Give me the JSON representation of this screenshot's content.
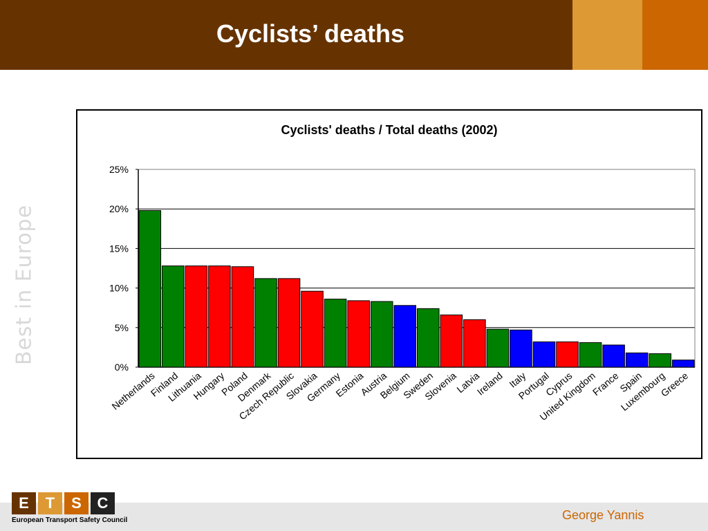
{
  "slide": {
    "title": "Cyclists’ deaths",
    "side_text": "Best in Europe",
    "author": "George Yannis"
  },
  "logo": {
    "letters": [
      "E",
      "T",
      "S",
      "C"
    ],
    "letter_colors": [
      "#663300",
      "#dd9933",
      "#cc6600",
      "#222222"
    ],
    "caption": "European Transport Safety Council"
  },
  "colors": {
    "header": "#663300",
    "accent_light": "#dd9933",
    "accent_dark": "#cc6600",
    "green": "#008000",
    "red": "#ff0000",
    "blue": "#0000ff"
  },
  "chart_data": {
    "type": "bar",
    "title": "Cyclists' deaths / Total deaths (2002)",
    "xlabel": "",
    "ylabel": "",
    "ylim": [
      0,
      25
    ],
    "yticks": [
      "0%",
      "5%",
      "10%",
      "15%",
      "20%",
      "25%"
    ],
    "grid": true,
    "categories": [
      "Netherlands",
      "Finland",
      "Lithuania",
      "Hungary",
      "Poland",
      "Denmark",
      "Czech Republic",
      "Slovakia",
      "Germany",
      "Estonia",
      "Austria",
      "Belgium",
      "Sweden",
      "Slovenia",
      "Latvia",
      "Ireland",
      "Italy",
      "Portugal",
      "Cyprus",
      "United Kingdom",
      "France",
      "Spain",
      "Luxembourg",
      "Greece"
    ],
    "values": [
      19.8,
      12.8,
      12.8,
      12.8,
      12.7,
      11.2,
      11.2,
      9.6,
      8.6,
      8.4,
      8.3,
      7.8,
      7.4,
      6.6,
      6.0,
      4.8,
      4.7,
      3.2,
      3.2,
      3.1,
      2.8,
      1.8,
      1.7,
      0.9
    ],
    "bar_colors": [
      "#008000",
      "#008000",
      "#ff0000",
      "#ff0000",
      "#ff0000",
      "#008000",
      "#ff0000",
      "#ff0000",
      "#008000",
      "#ff0000",
      "#008000",
      "#0000ff",
      "#008000",
      "#ff0000",
      "#ff0000",
      "#008000",
      "#0000ff",
      "#0000ff",
      "#ff0000",
      "#008000",
      "#0000ff",
      "#0000ff",
      "#008000",
      "#0000ff"
    ]
  }
}
